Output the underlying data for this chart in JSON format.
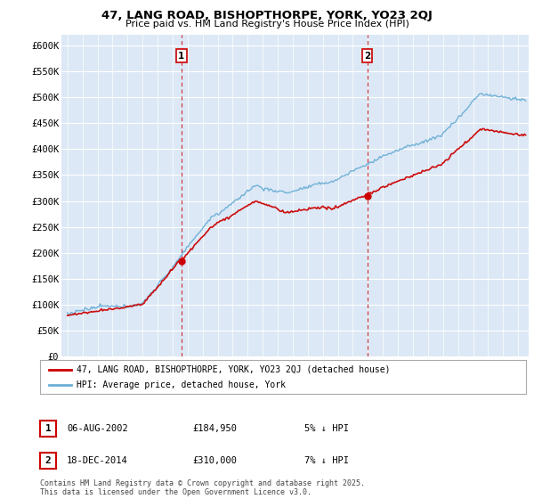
{
  "title1": "47, LANG ROAD, BISHOPTHORPE, YORK, YO23 2QJ",
  "title2": "Price paid vs. HM Land Registry's House Price Index (HPI)",
  "ylabel_ticks": [
    "£0",
    "£50K",
    "£100K",
    "£150K",
    "£200K",
    "£250K",
    "£300K",
    "£350K",
    "£400K",
    "£450K",
    "£500K",
    "£550K",
    "£600K"
  ],
  "ytick_values": [
    0,
    50000,
    100000,
    150000,
    200000,
    250000,
    300000,
    350000,
    400000,
    450000,
    500000,
    550000,
    600000
  ],
  "purchase1_year": 2002.59,
  "purchase1_price": 184950,
  "purchase2_year": 2014.96,
  "purchase2_price": 310000,
  "legend_entry1": "47, LANG ROAD, BISHOPTHORPE, YORK, YO23 2QJ (detached house)",
  "legend_entry2": "HPI: Average price, detached house, York",
  "annotation1_date": "06-AUG-2002",
  "annotation1_price": "£184,950",
  "annotation1_pct": "5% ↓ HPI",
  "annotation2_date": "18-DEC-2014",
  "annotation2_price": "£310,000",
  "annotation2_pct": "7% ↓ HPI",
  "footer": "Contains HM Land Registry data © Crown copyright and database right 2025.\nThis data is licensed under the Open Government Licence v3.0.",
  "hpi_color": "#6baed6",
  "price_color": "#cc0000",
  "dashed_line_color": "#cc0000",
  "background_color": "#dce8f5"
}
